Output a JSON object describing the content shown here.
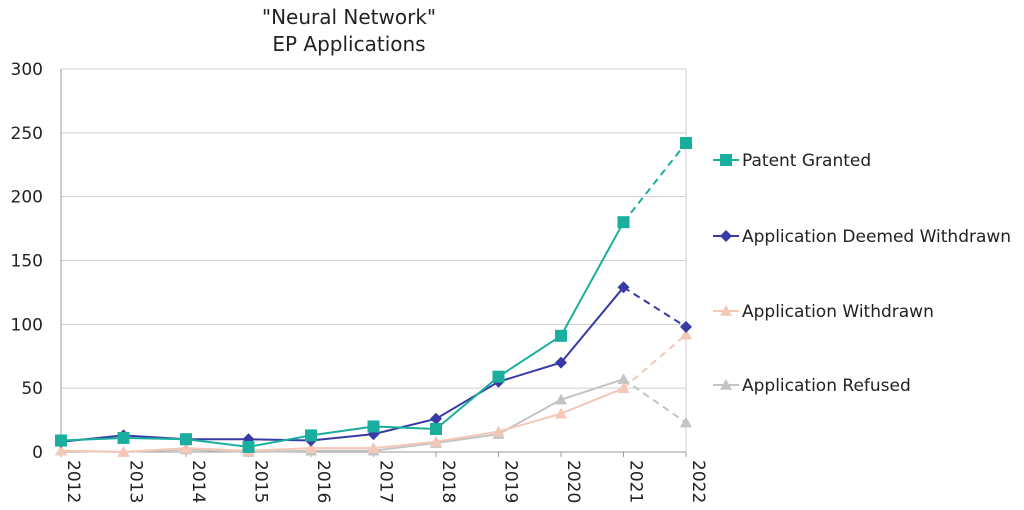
{
  "chart_data": {
    "type": "line",
    "title": "\"Neural Network\"",
    "subtitle": "EP Applications",
    "xlabel": "",
    "ylabel": "",
    "ylim": [
      0,
      300
    ],
    "yticks": [
      0,
      50,
      100,
      150,
      200,
      250,
      300
    ],
    "categories": [
      "2012",
      "2013",
      "2014",
      "2015",
      "2016",
      "2017",
      "2018",
      "2019",
      "2020",
      "2021",
      "2022"
    ],
    "grid": true,
    "legend_position": "right",
    "dashed_last_segment": true,
    "series": [
      {
        "name": "Patent Granted",
        "color": "#1aae9f",
        "marker": "square",
        "values": [
          9,
          11,
          10,
          4,
          13,
          20,
          18,
          59,
          91,
          180,
          242
        ]
      },
      {
        "name": "Application Deemed Withdrawn",
        "color": "#3a3aa6",
        "marker": "diamond",
        "values": [
          8,
          13,
          10,
          10,
          9,
          14,
          26,
          55,
          70,
          129,
          98
        ]
      },
      {
        "name": "Application Withdrawn",
        "color": "#f4c7b6",
        "marker": "triangle",
        "values": [
          1,
          0,
          3,
          1,
          3,
          3,
          8,
          16,
          30,
          50,
          92
        ]
      },
      {
        "name": "Application Refused",
        "color": "#c4c4c4",
        "marker": "triangle",
        "values": [
          1,
          0,
          2,
          0,
          1,
          1,
          7,
          14,
          41,
          57,
          23
        ]
      }
    ]
  }
}
